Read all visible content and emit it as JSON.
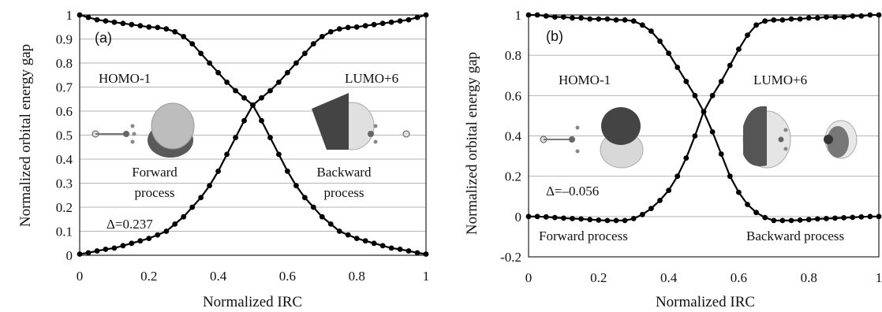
{
  "chart_data": [
    {
      "type": "line",
      "panel_label": "(a)",
      "xlabel": "Normalized IRC",
      "ylabel": "Normalized orbital energy gap",
      "xlim": [
        0,
        1
      ],
      "ylim": [
        0,
        1
      ],
      "xticks": [
        "0",
        "0.2",
        "0.4",
        "0.6",
        "0.8",
        "1"
      ],
      "yticks": [
        "0",
        "0.1",
        "0.2",
        "0.3",
        "0.4",
        "0.5",
        "0.6",
        "0.7",
        "0.8",
        "0.9",
        "1"
      ],
      "grid": "horizontal",
      "annotations": [
        "HOMO-1",
        "LUMO+6",
        "Forward",
        "process",
        "Backward",
        "process",
        "Δ=0.237"
      ],
      "series": [
        {
          "x": [
            0,
            0.025,
            0.05,
            0.075,
            0.1,
            0.125,
            0.15,
            0.175,
            0.2,
            0.225,
            0.25,
            0.275,
            0.3,
            0.325,
            0.35,
            0.375,
            0.4,
            0.425,
            0.45,
            0.475,
            0.5,
            0.525,
            0.55,
            0.575,
            0.6,
            0.625,
            0.65,
            0.675,
            0.7,
            0.725,
            0.75,
            0.775,
            0.8,
            0.825,
            0.85,
            0.875,
            0.9,
            0.925,
            0.95,
            0.975,
            1
          ],
          "y": [
            1.0,
            0.99,
            0.98,
            0.975,
            0.97,
            0.965,
            0.96,
            0.955,
            0.95,
            0.948,
            0.942,
            0.93,
            0.91,
            0.88,
            0.84,
            0.8,
            0.76,
            0.72,
            0.685,
            0.655,
            0.625,
            0.56,
            0.49,
            0.42,
            0.35,
            0.29,
            0.24,
            0.2,
            0.16,
            0.13,
            0.1,
            0.085,
            0.07,
            0.06,
            0.05,
            0.04,
            0.03,
            0.025,
            0.018,
            0.01,
            0.005
          ]
        },
        {
          "x": [
            0,
            0.025,
            0.05,
            0.075,
            0.1,
            0.125,
            0.15,
            0.175,
            0.2,
            0.225,
            0.25,
            0.275,
            0.3,
            0.325,
            0.35,
            0.375,
            0.4,
            0.425,
            0.45,
            0.475,
            0.5,
            0.525,
            0.55,
            0.575,
            0.6,
            0.625,
            0.65,
            0.675,
            0.7,
            0.725,
            0.75,
            0.775,
            0.8,
            0.825,
            0.85,
            0.875,
            0.9,
            0.925,
            0.95,
            0.975,
            1
          ],
          "y": [
            0.005,
            0.01,
            0.018,
            0.025,
            0.03,
            0.04,
            0.05,
            0.06,
            0.07,
            0.085,
            0.1,
            0.13,
            0.16,
            0.2,
            0.24,
            0.29,
            0.35,
            0.42,
            0.49,
            0.56,
            0.625,
            0.655,
            0.685,
            0.72,
            0.76,
            0.8,
            0.84,
            0.88,
            0.91,
            0.93,
            0.942,
            0.948,
            0.95,
            0.955,
            0.96,
            0.965,
            0.97,
            0.975,
            0.98,
            0.99,
            1.0
          ]
        }
      ]
    },
    {
      "type": "line",
      "panel_label": "(b)",
      "xlabel": "Normalized IRC",
      "ylabel": "Normalized orbital energy gap",
      "xlim": [
        0,
        1
      ],
      "ylim": [
        -0.2,
        1
      ],
      "xticks": [
        "0",
        "0.2",
        "0.4",
        "0.6",
        "0.8",
        "1"
      ],
      "yticks": [
        "-0.2",
        "0",
        "0.2",
        "0.4",
        "0.6",
        "0.8",
        "1"
      ],
      "grid": "horizontal",
      "annotations": [
        "HOMO-1",
        "LUMO+6",
        "Δ=–0.056",
        "Forward process",
        "Backward process"
      ],
      "series": [
        {
          "x": [
            0,
            0.025,
            0.05,
            0.075,
            0.1,
            0.125,
            0.15,
            0.175,
            0.2,
            0.225,
            0.25,
            0.275,
            0.3,
            0.325,
            0.35,
            0.375,
            0.4,
            0.425,
            0.45,
            0.475,
            0.5,
            0.525,
            0.55,
            0.575,
            0.6,
            0.625,
            0.65,
            0.675,
            0.7,
            0.725,
            0.75,
            0.775,
            0.8,
            0.825,
            0.85,
            0.875,
            0.9,
            0.925,
            0.95,
            0.975,
            1
          ],
          "y": [
            1.0,
            1.0,
            0.995,
            0.99,
            0.99,
            0.985,
            0.985,
            0.98,
            0.98,
            0.98,
            0.975,
            0.975,
            0.97,
            0.95,
            0.92,
            0.87,
            0.81,
            0.74,
            0.67,
            0.6,
            0.52,
            0.42,
            0.31,
            0.2,
            0.12,
            0.06,
            0.02,
            -0.005,
            -0.02,
            -0.02,
            -0.02,
            -0.018,
            -0.015,
            -0.012,
            -0.01,
            -0.008,
            -0.006,
            -0.004,
            -0.002,
            0.0,
            0.0
          ]
        },
        {
          "x": [
            0,
            0.025,
            0.05,
            0.075,
            0.1,
            0.125,
            0.15,
            0.175,
            0.2,
            0.225,
            0.25,
            0.275,
            0.3,
            0.325,
            0.35,
            0.375,
            0.4,
            0.425,
            0.45,
            0.475,
            0.5,
            0.525,
            0.55,
            0.575,
            0.6,
            0.625,
            0.65,
            0.675,
            0.7,
            0.725,
            0.75,
            0.775,
            0.8,
            0.825,
            0.85,
            0.875,
            0.9,
            0.925,
            0.95,
            0.975,
            1
          ],
          "y": [
            0.0,
            0.0,
            -0.002,
            -0.005,
            -0.008,
            -0.01,
            -0.012,
            -0.015,
            -0.018,
            -0.02,
            -0.02,
            -0.02,
            -0.01,
            0.01,
            0.04,
            0.08,
            0.13,
            0.2,
            0.29,
            0.4,
            0.52,
            0.6,
            0.67,
            0.75,
            0.83,
            0.9,
            0.95,
            0.97,
            0.975,
            0.975,
            0.98,
            0.98,
            0.985,
            0.985,
            0.99,
            0.99,
            0.99,
            0.995,
            0.995,
            1.0,
            1.0
          ]
        }
      ]
    }
  ]
}
